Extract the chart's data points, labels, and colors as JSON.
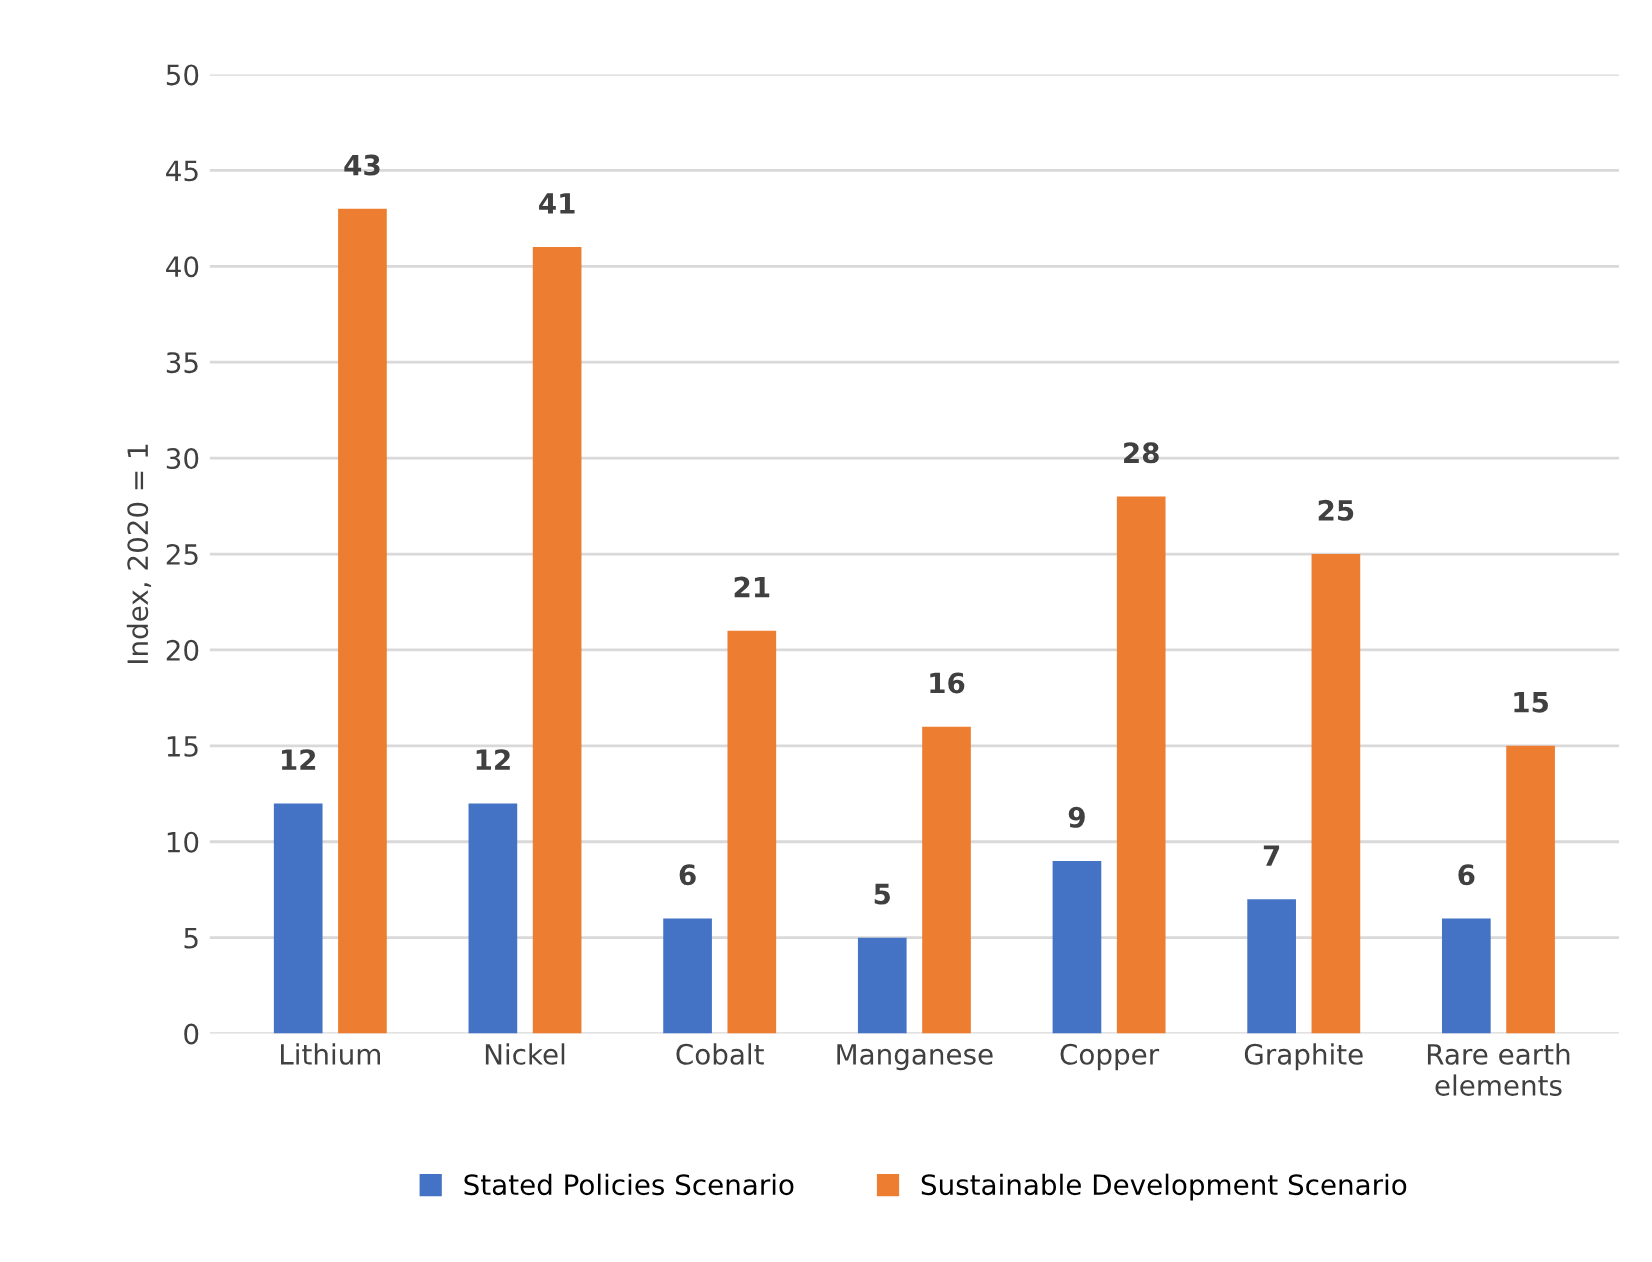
{
  "chart_data": {
    "type": "bar",
    "ylabel": "Index, 2020 = 1",
    "categories": [
      "Lithium",
      "Nickel",
      "Cobalt",
      "Manganese",
      "Copper",
      "Graphite",
      "Rare earth\nelements"
    ],
    "series": [
      {
        "name": "Stated Policies Scenario",
        "color": "#4472c4",
        "values": [
          12,
          12,
          6,
          5,
          9,
          7,
          6
        ]
      },
      {
        "name": "Sustainable Development Scenario",
        "color": "#ed7d31",
        "values": [
          43,
          41,
          21,
          16,
          28,
          25,
          15
        ]
      }
    ],
    "ylim": [
      0,
      50
    ],
    "yticks": [
      0,
      5,
      10,
      15,
      20,
      25,
      30,
      35,
      40,
      45,
      50
    ],
    "grid": "y",
    "legend": "bottom",
    "data_labels": true
  }
}
